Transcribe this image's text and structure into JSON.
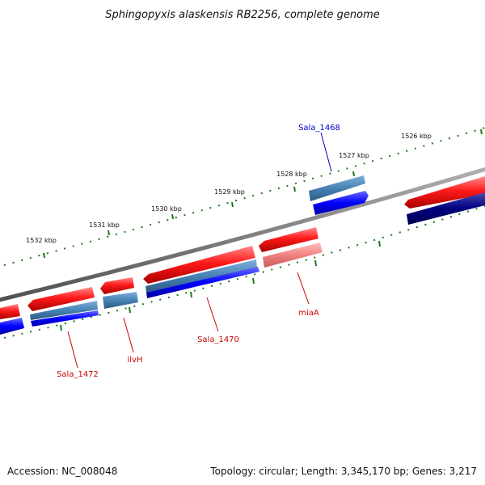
{
  "title": "Sphingopyxis alaskensis RB2256, complete genome",
  "footer": {
    "accession": "Accession: NC_008048",
    "summary": "Topology: circular; Length: 3,345,170 bp; Genes: 3,217"
  },
  "colors": {
    "forward_gene": "#ff0000",
    "forward_gene_light": "#f08080",
    "reverse_gene": "#0000ff",
    "reverse_gene_dark": "#000080",
    "reverse_gene_steel": "#4682b4",
    "backbone": "#808080",
    "tick": "#1a7a1a",
    "label_forward": "#cc0000",
    "label_reverse": "#0000cc"
  },
  "tick_labels": {
    "k1526": "1526 kbp",
    "k1527": "1527 kbp",
    "k1528": "1528 kbp",
    "k1529": "1529 kbp",
    "k1530": "1530 kbp",
    "k1531": "1531 kbp",
    "k1532": "1532 kbp"
  },
  "gene_labels": {
    "sala_1468": "Sala_1468",
    "mia_a": "miaA",
    "sala_1470": "Sala_1470",
    "ilv_h": "ilvH",
    "sala_1472": "Sala_1472"
  }
}
